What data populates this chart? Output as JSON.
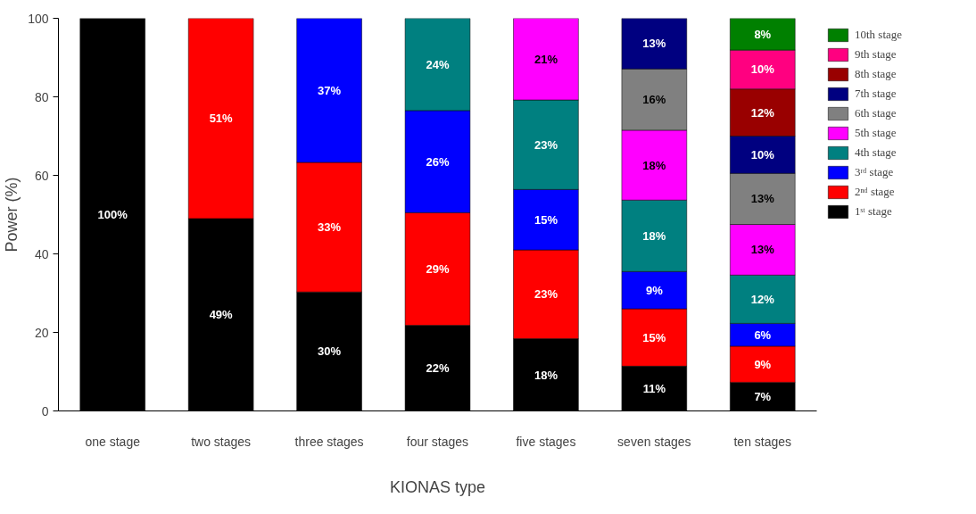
{
  "chart_data": {
    "type": "bar",
    "stacked": true,
    "xlabel": "KIONAS type",
    "ylabel": "Power (%)",
    "categories": [
      "one stage",
      "two stages",
      "three stages",
      "four stages",
      "five stages",
      "seven stages",
      "ten stages"
    ],
    "ylim": [
      0,
      100
    ],
    "yticks": [
      0,
      20,
      40,
      60,
      80,
      100
    ],
    "grid": false,
    "legend": "right",
    "series": [
      {
        "name": "1ˢᵗ stage",
        "color": "#000000",
        "values": [
          100,
          49,
          30.3,
          21.8,
          18.4,
          11.4,
          7.3
        ],
        "value_labels": [
          "100%",
          "49%",
          "30%",
          "22%",
          "18%",
          "11%",
          "7%"
        ]
      },
      {
        "name": "2ⁿᵈ stage",
        "color": "#ff0000",
        "values": [
          null,
          51,
          33,
          28.7,
          22.6,
          14.6,
          9.2
        ],
        "value_labels": [
          null,
          "51%",
          "33%",
          "29%",
          "23%",
          "15%",
          "9%"
        ]
      },
      {
        "name": "3ʳᵈ stage",
        "color": "#0000ff",
        "values": [
          null,
          null,
          36.7,
          26,
          15.4,
          9.5,
          5.8
        ],
        "value_labels": [
          null,
          null,
          "37%",
          "26%",
          "15%",
          "9%",
          "6%"
        ]
      },
      {
        "name": "4th stage",
        "color": "#008080",
        "values": [
          null,
          null,
          null,
          23.5,
          22.8,
          18.2,
          12.3
        ],
        "value_labels": [
          null,
          null,
          null,
          "24%",
          "23%",
          "18%",
          "12%"
        ]
      },
      {
        "name": "5th stage",
        "color": "#ff00ff",
        "values": [
          null,
          null,
          null,
          null,
          20.8,
          17.8,
          12.9
        ],
        "value_labels": [
          null,
          null,
          null,
          null,
          "21%",
          "18%",
          "13%"
        ]
      },
      {
        "name": "6th stage",
        "color": "#808080",
        "values": [
          null,
          null,
          null,
          null,
          null,
          15.6,
          13
        ],
        "value_labels": [
          null,
          null,
          null,
          null,
          null,
          "16%",
          "13%"
        ]
      },
      {
        "name": "7th stage",
        "color": "#000080",
        "values": [
          null,
          null,
          null,
          null,
          null,
          12.9,
          9.5
        ],
        "value_labels": [
          null,
          null,
          null,
          null,
          null,
          "13%",
          "10%"
        ]
      },
      {
        "name": "8th stage",
        "color": "#990000",
        "values": [
          null,
          null,
          null,
          null,
          null,
          null,
          12
        ],
        "value_labels": [
          null,
          null,
          null,
          null,
          null,
          null,
          "12%"
        ]
      },
      {
        "name": "9th stage",
        "color": "#ff0080",
        "values": [
          null,
          null,
          null,
          null,
          null,
          null,
          9.9
        ],
        "value_labels": [
          null,
          null,
          null,
          null,
          null,
          null,
          "10%"
        ]
      },
      {
        "name": "10th stage",
        "color": "#008000",
        "values": [
          null,
          null,
          null,
          null,
          null,
          null,
          8.1
        ],
        "value_labels": [
          null,
          null,
          null,
          null,
          null,
          null,
          "8%"
        ]
      }
    ]
  }
}
